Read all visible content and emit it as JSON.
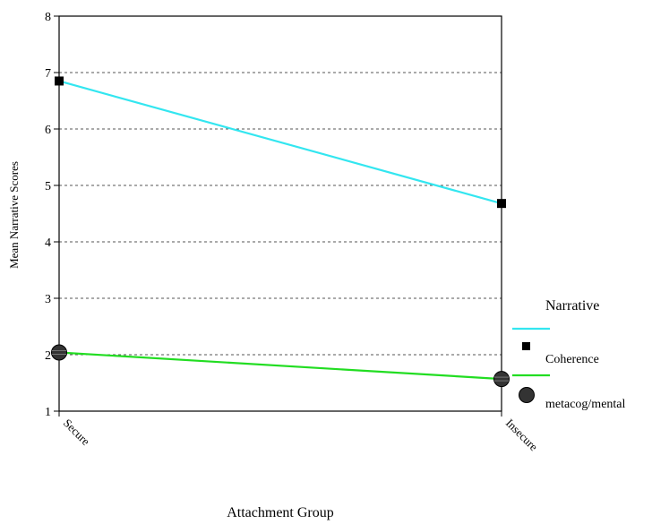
{
  "chart_data": {
    "type": "line",
    "title": "",
    "xlabel": "Attachment Group",
    "ylabel": "Mean Narrative Scores",
    "categories": [
      "Secure",
      "Insecure"
    ],
    "ylim": [
      1,
      8
    ],
    "yticks": [
      1,
      2,
      3,
      4,
      5,
      6,
      7,
      8
    ],
    "grid": "horizontal dashed",
    "legend_position": "right",
    "legend_title": "Narrative",
    "series": [
      {
        "name": "Coherence",
        "values": [
          6.85,
          4.68
        ],
        "color": "#33e6f0",
        "marker": "square"
      },
      {
        "name": "metacog/mental",
        "values": [
          2.04,
          1.57
        ],
        "color": "#22dd22",
        "marker": "circle"
      }
    ]
  }
}
